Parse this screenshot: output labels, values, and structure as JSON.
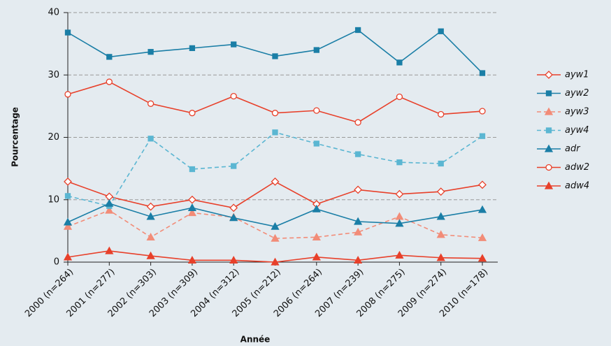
{
  "chart_data": {
    "type": "line",
    "x_label": "Année",
    "y_label": "Pourcentage",
    "categories": [
      "2000 (n=264)",
      "2001 (n=277)",
      "2002 (n=303)",
      "2003 (n=309)",
      "2004 (n=312)",
      "2005 (n=212)",
      "2006 (n=264)",
      "2007 (n=239)",
      "2008 (n=275)",
      "2009 (n=274)",
      "2010 (n=178)"
    ],
    "ylim": [
      0,
      40
    ],
    "yticks": [
      0,
      10,
      20,
      30,
      40
    ],
    "grid": true,
    "legend": "right",
    "series": [
      {
        "name": "ayw1",
        "color": "#e8402a",
        "marker": "diamond",
        "filled": false,
        "dashed": false,
        "values": [
          12.9,
          10.5,
          8.9,
          10.0,
          8.7,
          12.9,
          9.3,
          11.6,
          10.9,
          11.3,
          12.4
        ]
      },
      {
        "name": "ayw2",
        "color": "#1a7ea6",
        "marker": "square",
        "filled": true,
        "dashed": false,
        "values": [
          36.8,
          32.9,
          33.7,
          34.3,
          34.9,
          33.0,
          34.0,
          37.2,
          32.0,
          37.0,
          30.3
        ]
      },
      {
        "name": "ayw3",
        "color": "#f28c78",
        "marker": "triangle",
        "filled": true,
        "dashed": true,
        "values": [
          5.7,
          8.3,
          4.0,
          7.9,
          7.2,
          3.8,
          4.0,
          4.8,
          7.3,
          4.4,
          3.9
        ]
      },
      {
        "name": "ayw4",
        "color": "#5bb6d2",
        "marker": "square",
        "filled": true,
        "dashed": true,
        "values": [
          10.6,
          9.0,
          19.8,
          14.9,
          15.4,
          20.8,
          19.0,
          17.3,
          16.0,
          15.8,
          20.2
        ]
      },
      {
        "name": "adr",
        "color": "#1a7ea6",
        "marker": "triangle",
        "filled": true,
        "dashed": false,
        "values": [
          6.4,
          9.4,
          7.3,
          8.7,
          7.1,
          5.7,
          8.5,
          6.5,
          6.2,
          7.3,
          8.4
        ]
      },
      {
        "name": "adw2",
        "color": "#e8402a",
        "marker": "circle",
        "filled": false,
        "dashed": false,
        "values": [
          26.9,
          28.9,
          25.4,
          23.9,
          26.6,
          23.9,
          24.3,
          22.4,
          26.5,
          23.7,
          24.2
        ]
      },
      {
        "name": "adw4",
        "color": "#e8402a",
        "marker": "triangle",
        "filled": true,
        "dashed": false,
        "values": [
          0.8,
          1.8,
          1.0,
          0.3,
          0.3,
          0.0,
          0.8,
          0.3,
          1.1,
          0.7,
          0.6
        ]
      }
    ]
  }
}
